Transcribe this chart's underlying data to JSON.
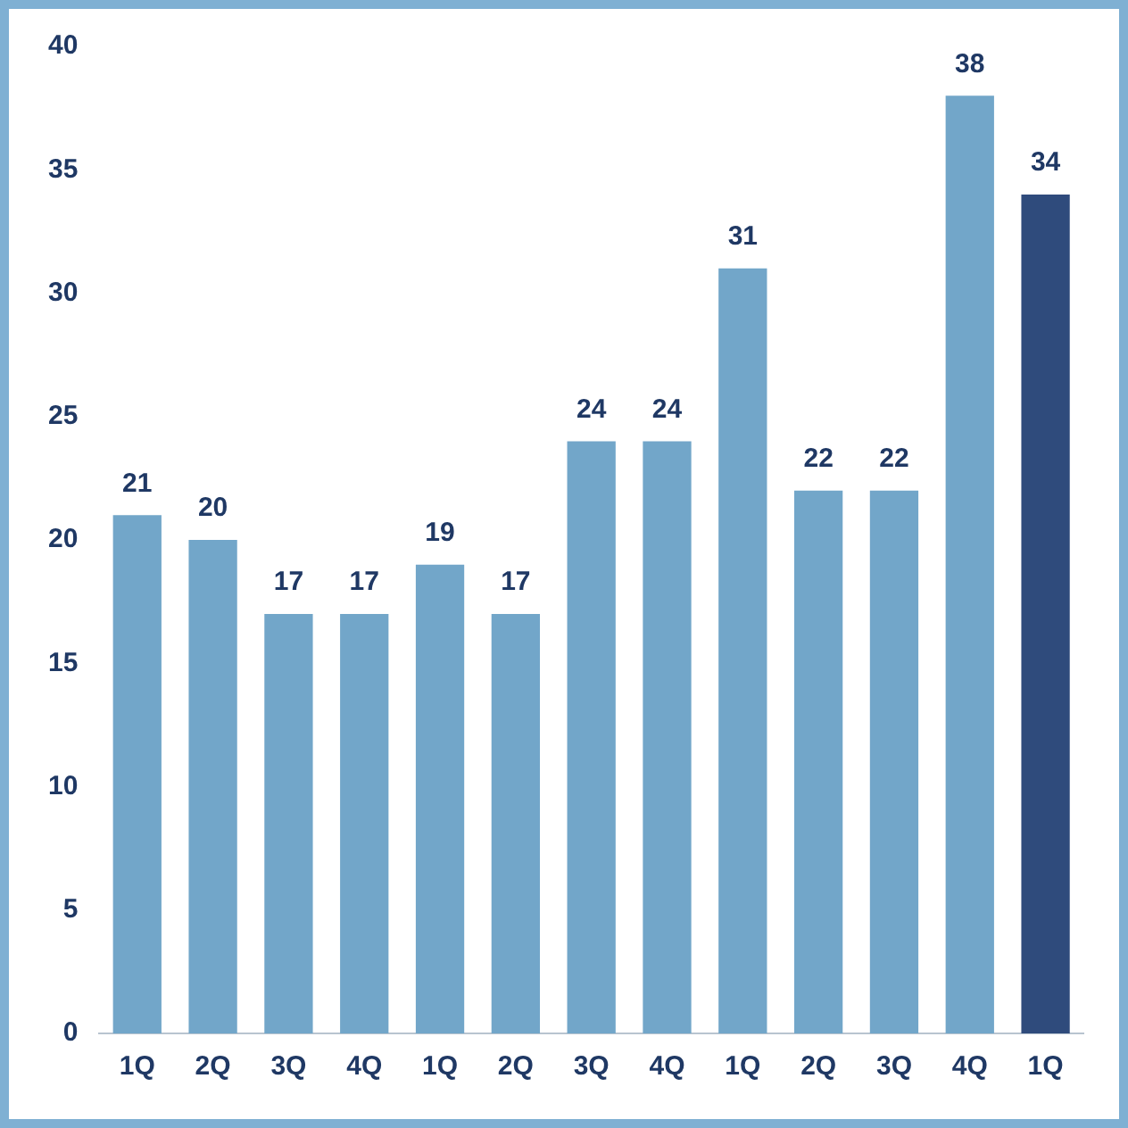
{
  "chart_data": {
    "type": "bar",
    "categories": [
      "1Q",
      "2Q",
      "3Q",
      "4Q",
      "1Q",
      "2Q",
      "3Q",
      "4Q",
      "1Q",
      "2Q",
      "3Q",
      "4Q",
      "1Q"
    ],
    "values": [
      21,
      20,
      17,
      17,
      19,
      17,
      24,
      24,
      31,
      22,
      22,
      38,
      34
    ],
    "colors": [
      "#72a6c9",
      "#72a6c9",
      "#72a6c9",
      "#72a6c9",
      "#72a6c9",
      "#72a6c9",
      "#72a6c9",
      "#72a6c9",
      "#72a6c9",
      "#72a6c9",
      "#72a6c9",
      "#72a6c9",
      "#2f4b7c"
    ],
    "ylim": [
      0,
      40
    ],
    "yticks": [
      0,
      5,
      10,
      15,
      20,
      25,
      30,
      35,
      40
    ],
    "data_labels": true,
    "grid": false,
    "legend": false
  }
}
